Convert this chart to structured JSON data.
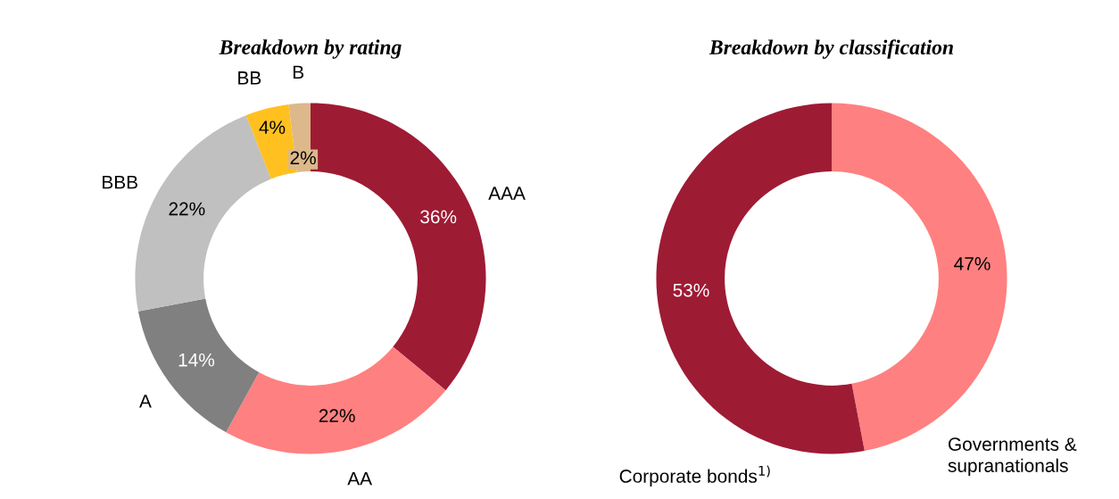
{
  "chart_data": [
    {
      "type": "donut",
      "title": "Breakdown by rating",
      "categories": [
        "AAA",
        "AA",
        "A",
        "BBB",
        "BB",
        "B"
      ],
      "values": [
        36,
        22,
        14,
        22,
        4,
        2
      ],
      "value_labels": [
        "36%",
        "22%",
        "14%",
        "22%",
        "4%",
        "2%"
      ],
      "colors": [
        "#9e1b34",
        "#ff8080",
        "#808080",
        "#c0c0c0",
        "#ffc020",
        "#dcb88a"
      ]
    },
    {
      "type": "donut",
      "title": "Breakdown by classification",
      "categories": [
        "Governments &\nsupranationals",
        "Corporate bonds$^{1)}$"
      ],
      "values": [
        47,
        53
      ],
      "value_labels": [
        "47%",
        "53%"
      ],
      "colors": [
        "#ff8080",
        "#9e1b34"
      ]
    }
  ]
}
